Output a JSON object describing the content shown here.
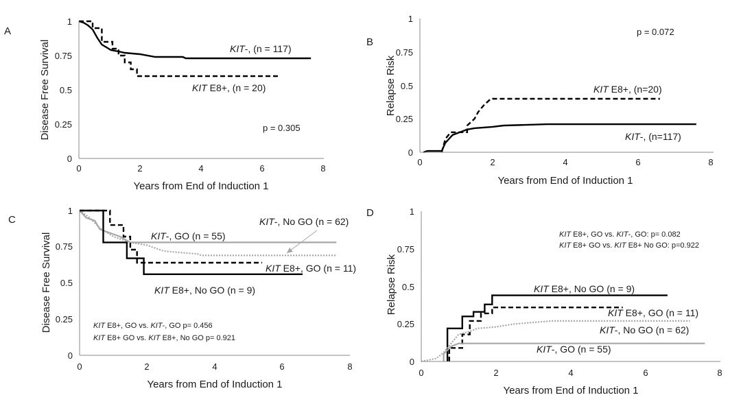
{
  "chart_data": [
    {
      "id": "A",
      "type": "line",
      "panel_label": "A",
      "xlabel": "Years from End of Induction 1",
      "ylabel": "Disease Free Survival",
      "xlim": [
        0,
        8
      ],
      "ylim": [
        0,
        1
      ],
      "xticks": [
        "0",
        "2",
        "4",
        "6",
        "8"
      ],
      "yticks": [
        "0",
        "0.25",
        "0.5",
        "0.75",
        "1"
      ],
      "series": [
        {
          "name": "KIT-",
          "style": "solid",
          "color": "#000000",
          "points": [
            [
              0,
              1
            ],
            [
              0.15,
              0.99
            ],
            [
              0.3,
              0.97
            ],
            [
              0.45,
              0.94
            ],
            [
              0.6,
              0.88
            ],
            [
              0.75,
              0.83
            ],
            [
              0.9,
              0.81
            ],
            [
              1.05,
              0.79
            ],
            [
              1.3,
              0.78
            ],
            [
              1.5,
              0.77
            ],
            [
              2.0,
              0.76
            ],
            [
              2.5,
              0.74
            ],
            [
              3.4,
              0.74
            ],
            [
              3.5,
              0.73
            ],
            [
              7.6,
              0.73
            ]
          ]
        },
        {
          "name": "KIT E8+",
          "style": "dashed",
          "color": "#000000",
          "points": [
            [
              0,
              1
            ],
            [
              0.45,
              1
            ],
            [
              0.45,
              0.95
            ],
            [
              0.75,
              0.95
            ],
            [
              0.75,
              0.85
            ],
            [
              1.1,
              0.85
            ],
            [
              1.1,
              0.8
            ],
            [
              1.3,
              0.8
            ],
            [
              1.3,
              0.75
            ],
            [
              1.5,
              0.75
            ],
            [
              1.5,
              0.7
            ],
            [
              1.7,
              0.7
            ],
            [
              1.7,
              0.65
            ],
            [
              1.9,
              0.65
            ],
            [
              1.9,
              0.6
            ],
            [
              6.6,
              0.6
            ]
          ]
        }
      ],
      "annotations": [
        {
          "italic": "KIT",
          "text": "-, (n = 117)"
        },
        {
          "italic": "KIT",
          "text": " E8+, (n = 20)"
        }
      ],
      "pvalue": "p = 0.305"
    },
    {
      "id": "B",
      "type": "line",
      "panel_label": "B",
      "xlabel": "Years from End of Induction 1",
      "ylabel": "Relapse Risk",
      "xlim": [
        0,
        8
      ],
      "ylim": [
        0,
        1
      ],
      "xticks": [
        "0",
        "2",
        "4",
        "6",
        "8"
      ],
      "yticks": [
        "0",
        "0.25",
        "0.5",
        "0.75",
        "1"
      ],
      "series": [
        {
          "name": "KIT-",
          "style": "solid",
          "color": "#000000",
          "points": [
            [
              0.1,
              0
            ],
            [
              0.2,
              0.01
            ],
            [
              0.6,
              0.01
            ],
            [
              0.7,
              0.07
            ],
            [
              0.8,
              0.1
            ],
            [
              0.9,
              0.13
            ],
            [
              1.1,
              0.15
            ],
            [
              1.3,
              0.17
            ],
            [
              1.5,
              0.18
            ],
            [
              2.0,
              0.19
            ],
            [
              2.3,
              0.2
            ],
            [
              3.5,
              0.21
            ],
            [
              7.6,
              0.21
            ]
          ]
        },
        {
          "name": "KIT E8+",
          "style": "dashed",
          "color": "#000000",
          "points": [
            [
              0.6,
              0
            ],
            [
              0.7,
              0.1
            ],
            [
              0.85,
              0.15
            ],
            [
              1.3,
              0.15
            ],
            [
              1.3,
              0.2
            ],
            [
              1.5,
              0.25
            ],
            [
              1.6,
              0.3
            ],
            [
              1.75,
              0.35
            ],
            [
              1.95,
              0.4
            ],
            [
              6.6,
              0.4
            ]
          ]
        }
      ],
      "annotations": [
        {
          "italic": "KIT",
          "text": " E8+, (n=20)"
        },
        {
          "italic": "KIT",
          "text": "-, (n=117)"
        }
      ],
      "pvalue": "p = 0.072"
    },
    {
      "id": "C",
      "type": "line",
      "panel_label": "C",
      "xlabel": "Years from End of Induction 1",
      "ylabel": "Disease Free Survival",
      "xlim": [
        0,
        8
      ],
      "ylim": [
        0,
        1
      ],
      "xticks": [
        "0",
        "2",
        "4",
        "6",
        "8"
      ],
      "yticks": [
        "0",
        "0.25",
        "0.5",
        "0.75",
        "1"
      ],
      "series": [
        {
          "name": "KIT-, GO",
          "style": "solid",
          "color": "#a6a6a6",
          "points": [
            [
              0,
              1
            ],
            [
              0.2,
              0.95
            ],
            [
              0.45,
              0.93
            ],
            [
              0.6,
              0.87
            ],
            [
              1.2,
              0.82
            ],
            [
              1.5,
              0.78
            ],
            [
              7.6,
              0.78
            ]
          ]
        },
        {
          "name": "KIT-, No GO",
          "style": "dotted",
          "color": "#a6a6a6",
          "points": [
            [
              0,
              1
            ],
            [
              0.3,
              0.95
            ],
            [
              0.6,
              0.88
            ],
            [
              1.0,
              0.82
            ],
            [
              1.5,
              0.78
            ],
            [
              2.0,
              0.76
            ],
            [
              2.5,
              0.72
            ],
            [
              3.5,
              0.7
            ],
            [
              3.6,
              0.69
            ],
            [
              7.6,
              0.69
            ]
          ]
        },
        {
          "name": "KIT E8+, GO",
          "style": "dashed",
          "color": "#000000",
          "points": [
            [
              0,
              1
            ],
            [
              0.9,
              1
            ],
            [
              0.9,
              0.9
            ],
            [
              1.3,
              0.9
            ],
            [
              1.3,
              0.82
            ],
            [
              1.5,
              0.82
            ],
            [
              1.5,
              0.73
            ],
            [
              1.7,
              0.73
            ],
            [
              1.7,
              0.64
            ],
            [
              5.4,
              0.64
            ]
          ]
        },
        {
          "name": "KIT E8+, No GO",
          "style": "solid",
          "color": "#000000",
          "points": [
            [
              0,
              1
            ],
            [
              0.7,
              1
            ],
            [
              0.7,
              0.78
            ],
            [
              1.4,
              0.78
            ],
            [
              1.4,
              0.67
            ],
            [
              1.9,
              0.67
            ],
            [
              1.9,
              0.56
            ],
            [
              6.6,
              0.56
            ]
          ]
        }
      ],
      "annotations": [
        {
          "italic": "KIT",
          "text": "-, No GO (n = 62)"
        },
        {
          "italic": "KIT",
          "text": "-, GO (n = 55)"
        },
        {
          "italic": "KIT",
          "text": " E8+, GO (n = 11)"
        },
        {
          "italic": "KIT",
          "text": " E8+, No GO (n = 9)"
        }
      ],
      "stats": [
        {
          "a_italic": "KIT",
          "a": " E8+, GO vs. ",
          "b_italic": "KIT",
          "b": "-, GO p= 0.456"
        },
        {
          "a_italic": "KIT",
          "a": " E8+ GO vs. ",
          "b_italic": "KIT",
          "b": " E8+, No GO p= 0.921"
        }
      ]
    },
    {
      "id": "D",
      "type": "line",
      "panel_label": "D",
      "xlabel": "Years from End of Induction 1",
      "ylabel": "Relapse Risk",
      "xlim": [
        0,
        8
      ],
      "ylim": [
        0,
        1
      ],
      "xticks": [
        "0",
        "2",
        "4",
        "6",
        "8"
      ],
      "yticks": [
        "0",
        "0.25",
        "0.5",
        "0.75",
        "1"
      ],
      "series": [
        {
          "name": "KIT E8+, No GO",
          "style": "solid",
          "color": "#000000",
          "points": [
            [
              0.7,
              0
            ],
            [
              0.7,
              0.22
            ],
            [
              1.1,
              0.22
            ],
            [
              1.1,
              0.3
            ],
            [
              1.4,
              0.3
            ],
            [
              1.4,
              0.33
            ],
            [
              1.7,
              0.33
            ],
            [
              1.7,
              0.38
            ],
            [
              1.9,
              0.38
            ],
            [
              1.9,
              0.44
            ],
            [
              6.6,
              0.44
            ]
          ]
        },
        {
          "name": "KIT E8+, GO",
          "style": "dashed",
          "color": "#000000",
          "points": [
            [
              0.75,
              0
            ],
            [
              0.75,
              0.09
            ],
            [
              1.1,
              0.09
            ],
            [
              1.1,
              0.18
            ],
            [
              1.3,
              0.18
            ],
            [
              1.3,
              0.27
            ],
            [
              1.6,
              0.27
            ],
            [
              1.6,
              0.32
            ],
            [
              1.9,
              0.32
            ],
            [
              1.9,
              0.36
            ],
            [
              5.4,
              0.36
            ]
          ]
        },
        {
          "name": "KIT-, No GO",
          "style": "dotted",
          "color": "#a6a6a6",
          "points": [
            [
              0,
              0
            ],
            [
              0.4,
              0.02
            ],
            [
              0.6,
              0.06
            ],
            [
              0.8,
              0.12
            ],
            [
              1.0,
              0.18
            ],
            [
              1.3,
              0.2
            ],
            [
              1.5,
              0.22
            ],
            [
              2.0,
              0.23
            ],
            [
              2.5,
              0.25
            ],
            [
              3.5,
              0.27
            ],
            [
              7.2,
              0.27
            ]
          ]
        },
        {
          "name": "KIT-, GO",
          "style": "solid",
          "color": "#a6a6a6",
          "points": [
            [
              0.6,
              0
            ],
            [
              0.6,
              0.05
            ],
            [
              0.8,
              0.1
            ],
            [
              1.0,
              0.12
            ],
            [
              7.6,
              0.12
            ]
          ]
        }
      ],
      "annotations": [
        {
          "italic": "KIT",
          "text": " E8+, No GO (n = 9)"
        },
        {
          "italic": "KIT",
          "text": " E8+, GO (n = 11)"
        },
        {
          "italic": "KIT",
          "text": "-, No GO (n = 62)"
        },
        {
          "italic": "KIT",
          "text": "-, GO (n = 55)"
        }
      ],
      "stats": [
        {
          "a_italic": "KIT",
          "a": " E8+, GO vs. ",
          "b_italic": "KIT",
          "b": "-, GO:  p= 0.082"
        },
        {
          "a_italic": "KIT",
          "a": " E8+ GO vs. ",
          "b_italic": "KIT",
          "b": " E8+ No GO: p=0.922"
        }
      ]
    }
  ]
}
